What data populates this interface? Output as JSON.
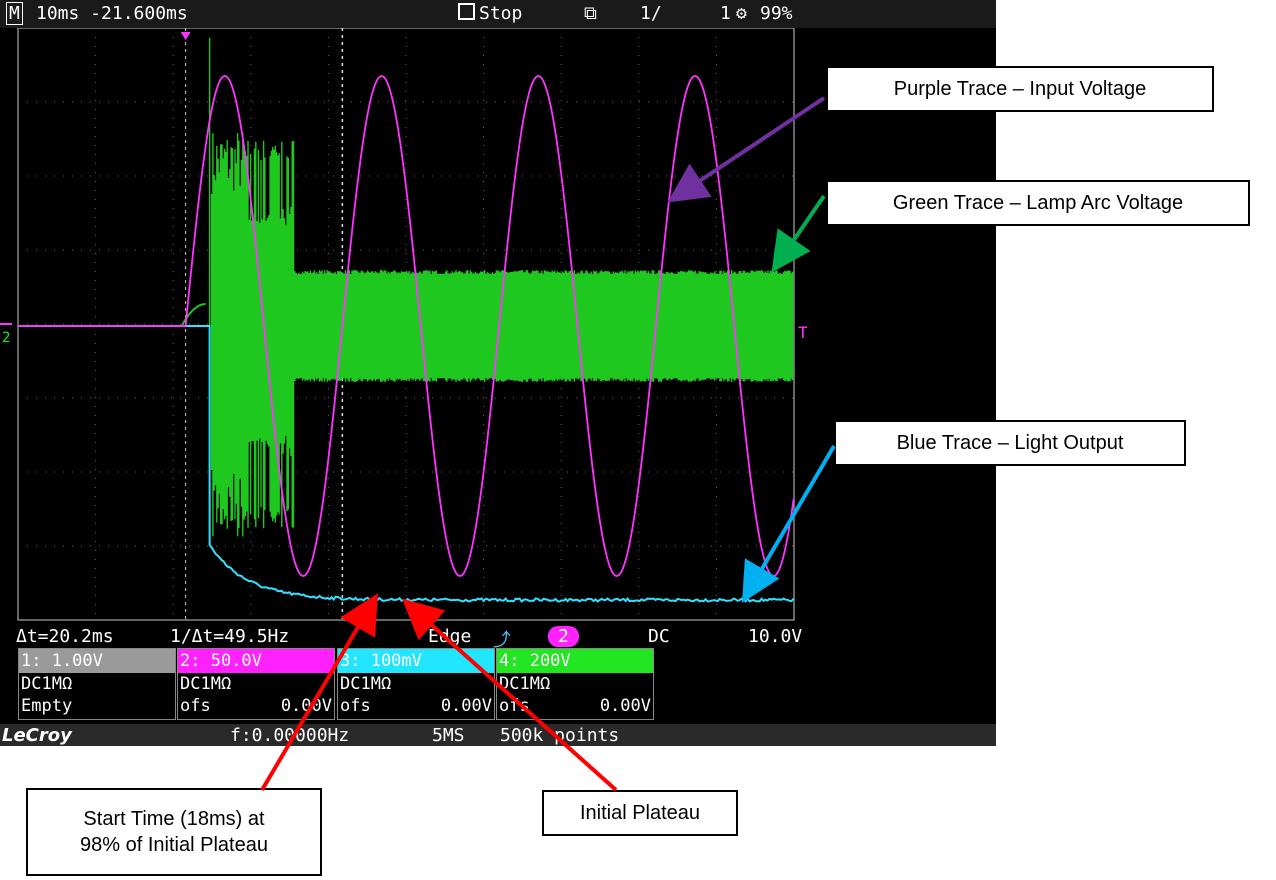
{
  "topbar": {
    "mode": "M",
    "timebase": "10ms -21.600ms",
    "run_state": "Stop",
    "acq_count": "1/",
    "acq_total": "1",
    "memory": "99%"
  },
  "measurements": {
    "delta_t": "Δt=20.2ms",
    "inv_delta_t": "1/Δt=49.5Hz",
    "trigger_type": "Edge",
    "trigger_source": "2",
    "coupling": "DC",
    "trigger_level": "10.0V"
  },
  "channels": [
    {
      "header": "1: 1.00V",
      "coupling": "DC1MΩ",
      "extra_label": "Empty",
      "extra_value": "",
      "color": "#9a9a9a"
    },
    {
      "header": "2: 50.0V",
      "coupling": "DC1MΩ",
      "extra_label": "ofs",
      "extra_value": "0.00V",
      "color": "#ff22ff"
    },
    {
      "header": "3: 100mV",
      "coupling": "DC1MΩ",
      "extra_label": "ofs",
      "extra_value": "0.00V",
      "color": "#22e6ff"
    },
    {
      "header": "4: 200V",
      "coupling": "DC1MΩ",
      "extra_label": "ofs",
      "extra_value": "0.00V",
      "color": "#22e622"
    }
  ],
  "bottombar": {
    "logo": "LeCroy",
    "frequency": "f:0.00000Hz",
    "sample_rate": "5MS",
    "points": "500k points"
  },
  "callouts": {
    "purple": "Purple Trace – Input Voltage",
    "green": "Green Trace – Lamp Arc Voltage",
    "blue": "Blue Trace – Light Output",
    "start_time_line1": "Start Time (18ms) at",
    "start_time_line2": "98% of Initial Plateau",
    "plateau": "Initial Plateau"
  },
  "chart_data": {
    "type": "line",
    "x_unit": "ms",
    "x_div": 10,
    "x_range": [
      -21.6,
      78.4
    ],
    "series": [
      {
        "name": "Purple Trace – Input Voltage",
        "color": "#ff33ff",
        "frequency_hz": 49.5,
        "starts_ms": 0
      },
      {
        "name": "Green Trace – Lamp Arc Voltage",
        "color": "#1ec81e"
      },
      {
        "name": "Blue Trace – Light Output",
        "color": "#33e0ff"
      }
    ],
    "annotations": {
      "delta_t_ms": 20.2,
      "start_time_ms": 18
    }
  }
}
